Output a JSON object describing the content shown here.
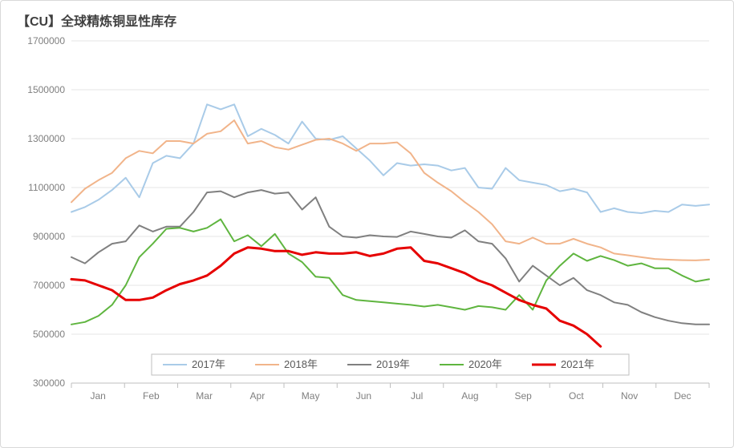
{
  "title": "【CU】全球精炼铜显性库存",
  "chart": {
    "type": "line",
    "background_color": "#ffffff",
    "grid_color": "#e6e6e6",
    "axis_color": "#bfbfbf",
    "axis_font_color": "#7f7f7f",
    "axis_fontsize": 12,
    "title_fontsize": 16,
    "title_color": "#3f3f3f",
    "ylim": [
      300000,
      1700000
    ],
    "ytick_step": 200000,
    "yticks": [
      300000,
      500000,
      700000,
      900000,
      1100000,
      1300000,
      1500000,
      1700000
    ],
    "months": [
      "Jan",
      "Feb",
      "Mar",
      "Apr",
      "May",
      "Jun",
      "Jul",
      "Aug",
      "Sep",
      "Oct",
      "Nov",
      "Dec"
    ],
    "points_per_month": 4,
    "line_width_default": 2,
    "line_width_highlight": 3,
    "legend": {
      "position": "bottom-inside",
      "border_color": "#bfbfbf",
      "items": [
        "2017年",
        "2018年",
        "2019年",
        "2020年",
        "2021年"
      ]
    },
    "series": [
      {
        "name": "2017年",
        "color": "#a9cbe8",
        "width": 2,
        "values": [
          1000000,
          1020000,
          1050000,
          1090000,
          1140000,
          1060000,
          1200000,
          1230000,
          1220000,
          1280000,
          1440000,
          1420000,
          1440000,
          1310000,
          1340000,
          1315000,
          1280000,
          1370000,
          1300000,
          1295000,
          1310000,
          1260000,
          1210000,
          1150000,
          1200000,
          1190000,
          1195000,
          1190000,
          1170000,
          1180000,
          1100000,
          1095000,
          1180000,
          1130000,
          1120000,
          1110000,
          1085000,
          1095000,
          1080000,
          1000000,
          1015000,
          1000000,
          995000,
          1005000,
          1000000,
          1030000,
          1025000,
          1030000
        ]
      },
      {
        "name": "2018年",
        "color": "#f1b48a",
        "width": 2,
        "values": [
          1040000,
          1095000,
          1130000,
          1160000,
          1220000,
          1250000,
          1240000,
          1290000,
          1290000,
          1280000,
          1320000,
          1330000,
          1375000,
          1280000,
          1290000,
          1265000,
          1255000,
          1275000,
          1295000,
          1300000,
          1280000,
          1250000,
          1280000,
          1280000,
          1285000,
          1240000,
          1160000,
          1120000,
          1085000,
          1040000,
          1000000,
          950000,
          880000,
          870000,
          895000,
          870000,
          870000,
          890000,
          870000,
          855000,
          830000,
          823000,
          815000,
          808000,
          805000,
          803000,
          802000,
          805000
        ]
      },
      {
        "name": "2019年",
        "color": "#808080",
        "width": 2,
        "values": [
          815000,
          790000,
          835000,
          870000,
          880000,
          945000,
          920000,
          940000,
          940000,
          1000000,
          1080000,
          1085000,
          1060000,
          1080000,
          1090000,
          1075000,
          1080000,
          1010000,
          1060000,
          940000,
          900000,
          895000,
          905000,
          900000,
          898000,
          920000,
          910000,
          900000,
          895000,
          925000,
          880000,
          870000,
          810000,
          715000,
          780000,
          740000,
          700000,
          730000,
          680000,
          660000,
          630000,
          620000,
          590000,
          570000,
          555000,
          545000,
          540000,
          540000
        ]
      },
      {
        "name": "2020年",
        "color": "#5fb53f",
        "width": 2,
        "values": [
          540000,
          550000,
          575000,
          620000,
          700000,
          815000,
          870000,
          931000,
          935000,
          920000,
          935000,
          970000,
          880000,
          905000,
          860000,
          910000,
          830000,
          795000,
          735000,
          730000,
          660000,
          640000,
          635000,
          630000,
          625000,
          620000,
          613000,
          620000,
          610000,
          600000,
          615000,
          610000,
          600000,
          660000,
          600000,
          720000,
          780000,
          830000,
          800000,
          820000,
          803000,
          780000,
          790000,
          770000,
          770000,
          740000,
          715000,
          725000
        ]
      },
      {
        "name": "2021年",
        "color": "#e60000",
        "width": 3,
        "values": [
          725000,
          720000,
          700000,
          680000,
          640000,
          640000,
          650000,
          680000,
          705000,
          720000,
          740000,
          780000,
          830000,
          855000,
          850000,
          840000,
          840000,
          825000,
          835000,
          830000,
          830000,
          835000,
          820000,
          830000,
          850000,
          855000,
          800000,
          790000,
          770000,
          750000,
          720000,
          700000,
          670000,
          640000,
          620000,
          605000,
          555000,
          535000,
          500000,
          450000
        ]
      }
    ]
  }
}
